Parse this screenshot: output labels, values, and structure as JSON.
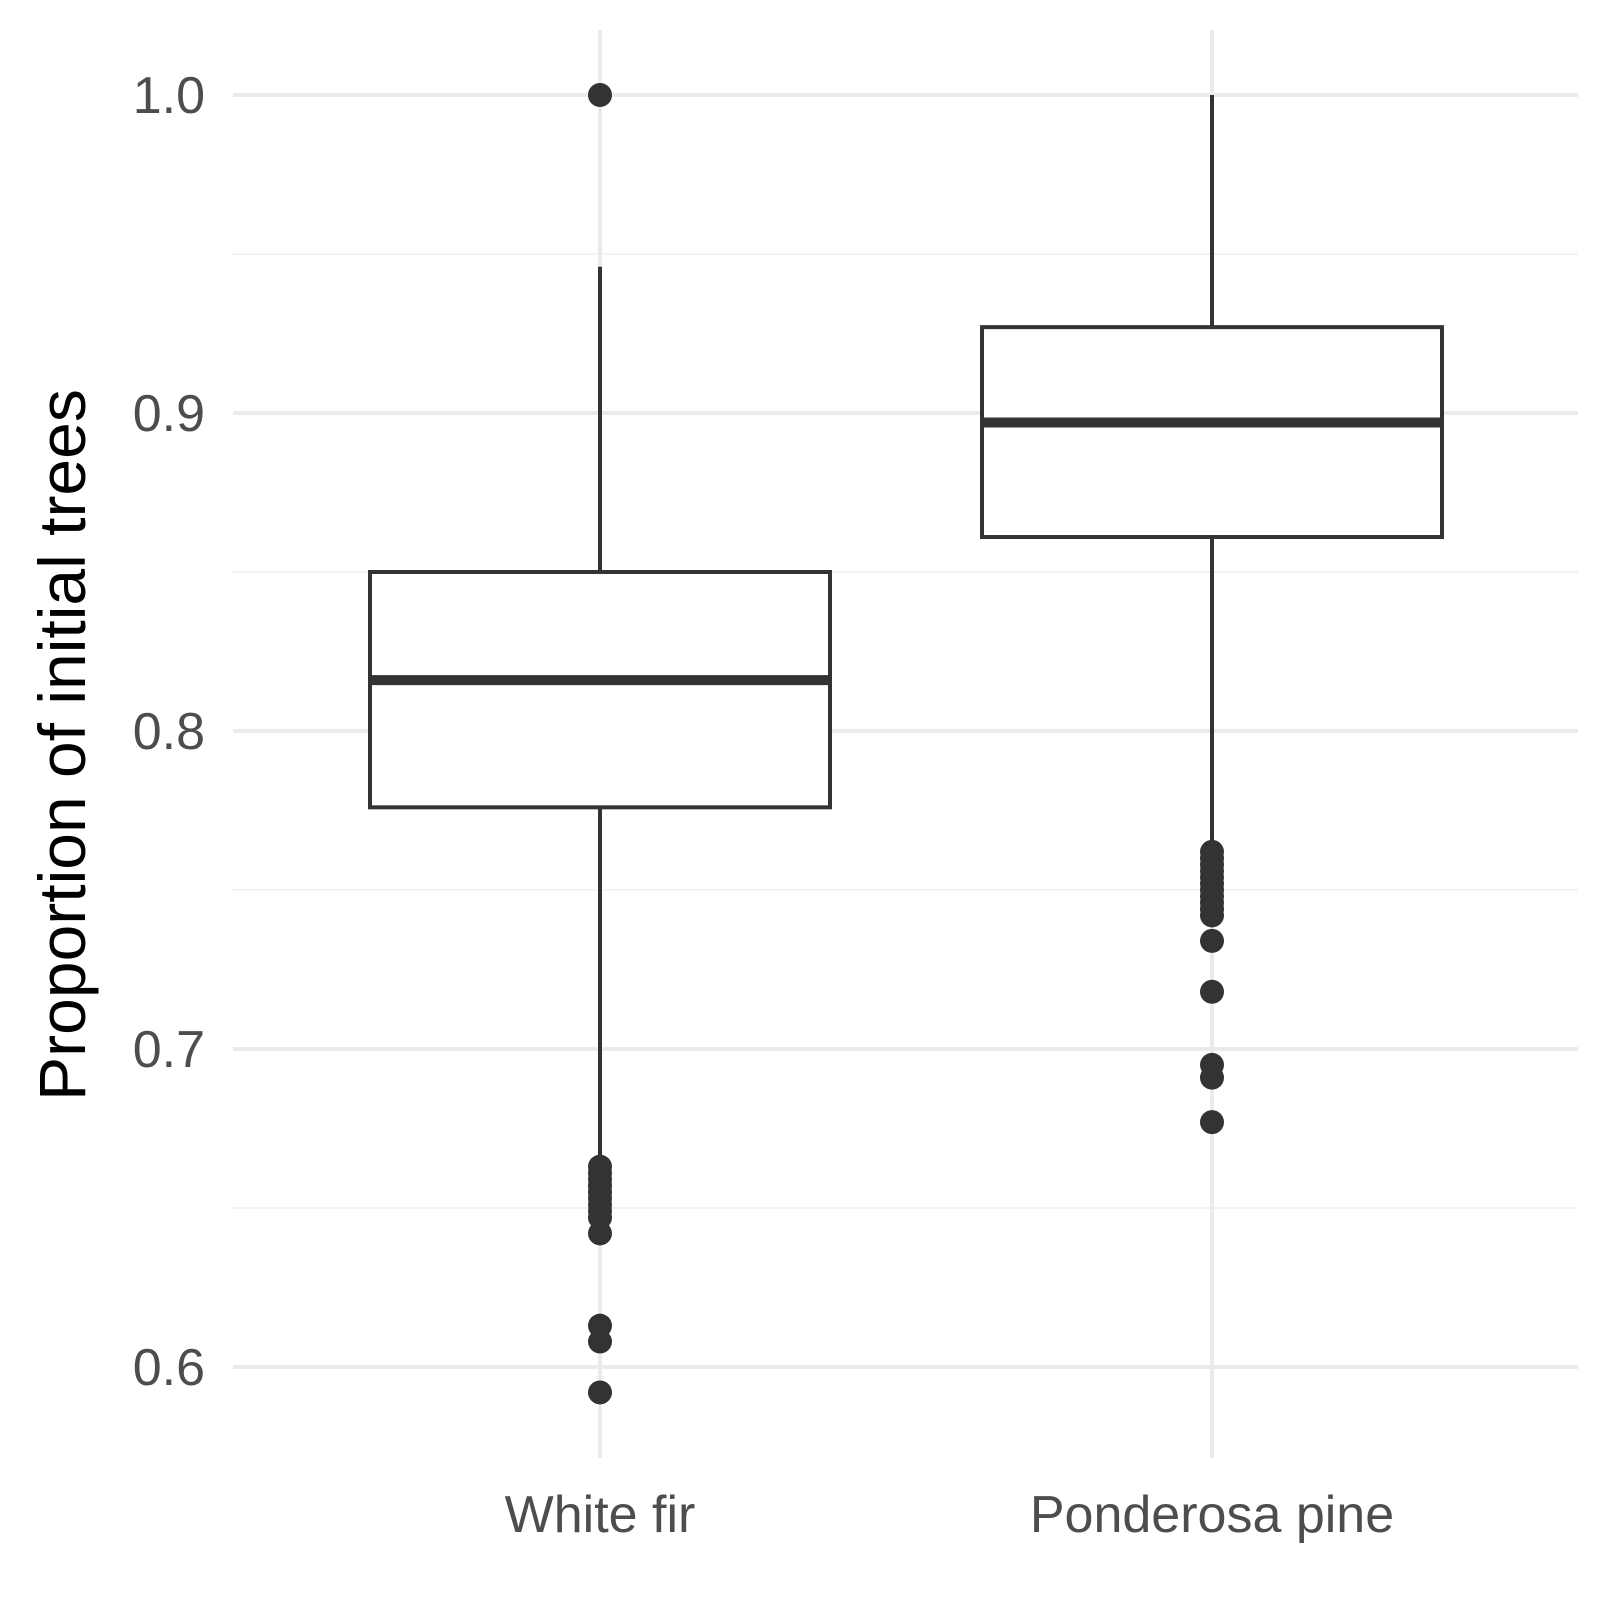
{
  "chart_data": {
    "type": "boxplot",
    "title": "",
    "xlabel": "",
    "ylabel": "Proportion of initial trees",
    "ylim": [
      0.58,
      1.02
    ],
    "y_ticks": [
      0.6,
      0.7,
      0.8,
      0.9,
      1.0
    ],
    "y_tick_labels": [
      "0.6",
      "0.7",
      "0.8",
      "0.9",
      "1.0"
    ],
    "y_minor_ticks": [
      0.65,
      0.75,
      0.85,
      0.95
    ],
    "grid": true,
    "legend": "none",
    "colors": {
      "box_stroke": "#333333",
      "box_fill": "#ffffff",
      "outlier": "#333333",
      "grid_major": "#ebebeb",
      "grid_minor": "#f2f2f2"
    },
    "categories": [
      "White fir",
      "Ponderosa pine"
    ],
    "boxes": [
      {
        "category": "White fir",
        "whisker_low": 0.663,
        "q1": 0.776,
        "median": 0.816,
        "q3": 0.85,
        "whisker_high": 0.946,
        "outliers": [
          1.0,
          0.663,
          0.661,
          0.659,
          0.657,
          0.655,
          0.653,
          0.651,
          0.649,
          0.647,
          0.642,
          0.613,
          0.608,
          0.592
        ]
      },
      {
        "category": "Ponderosa pine",
        "whisker_low": 0.762,
        "q1": 0.861,
        "median": 0.897,
        "q3": 0.927,
        "whisker_high": 1.0,
        "outliers": [
          0.762,
          0.76,
          0.758,
          0.756,
          0.754,
          0.752,
          0.75,
          0.748,
          0.746,
          0.744,
          0.742,
          0.734,
          0.718,
          0.695,
          0.691,
          0.677
        ]
      }
    ]
  }
}
